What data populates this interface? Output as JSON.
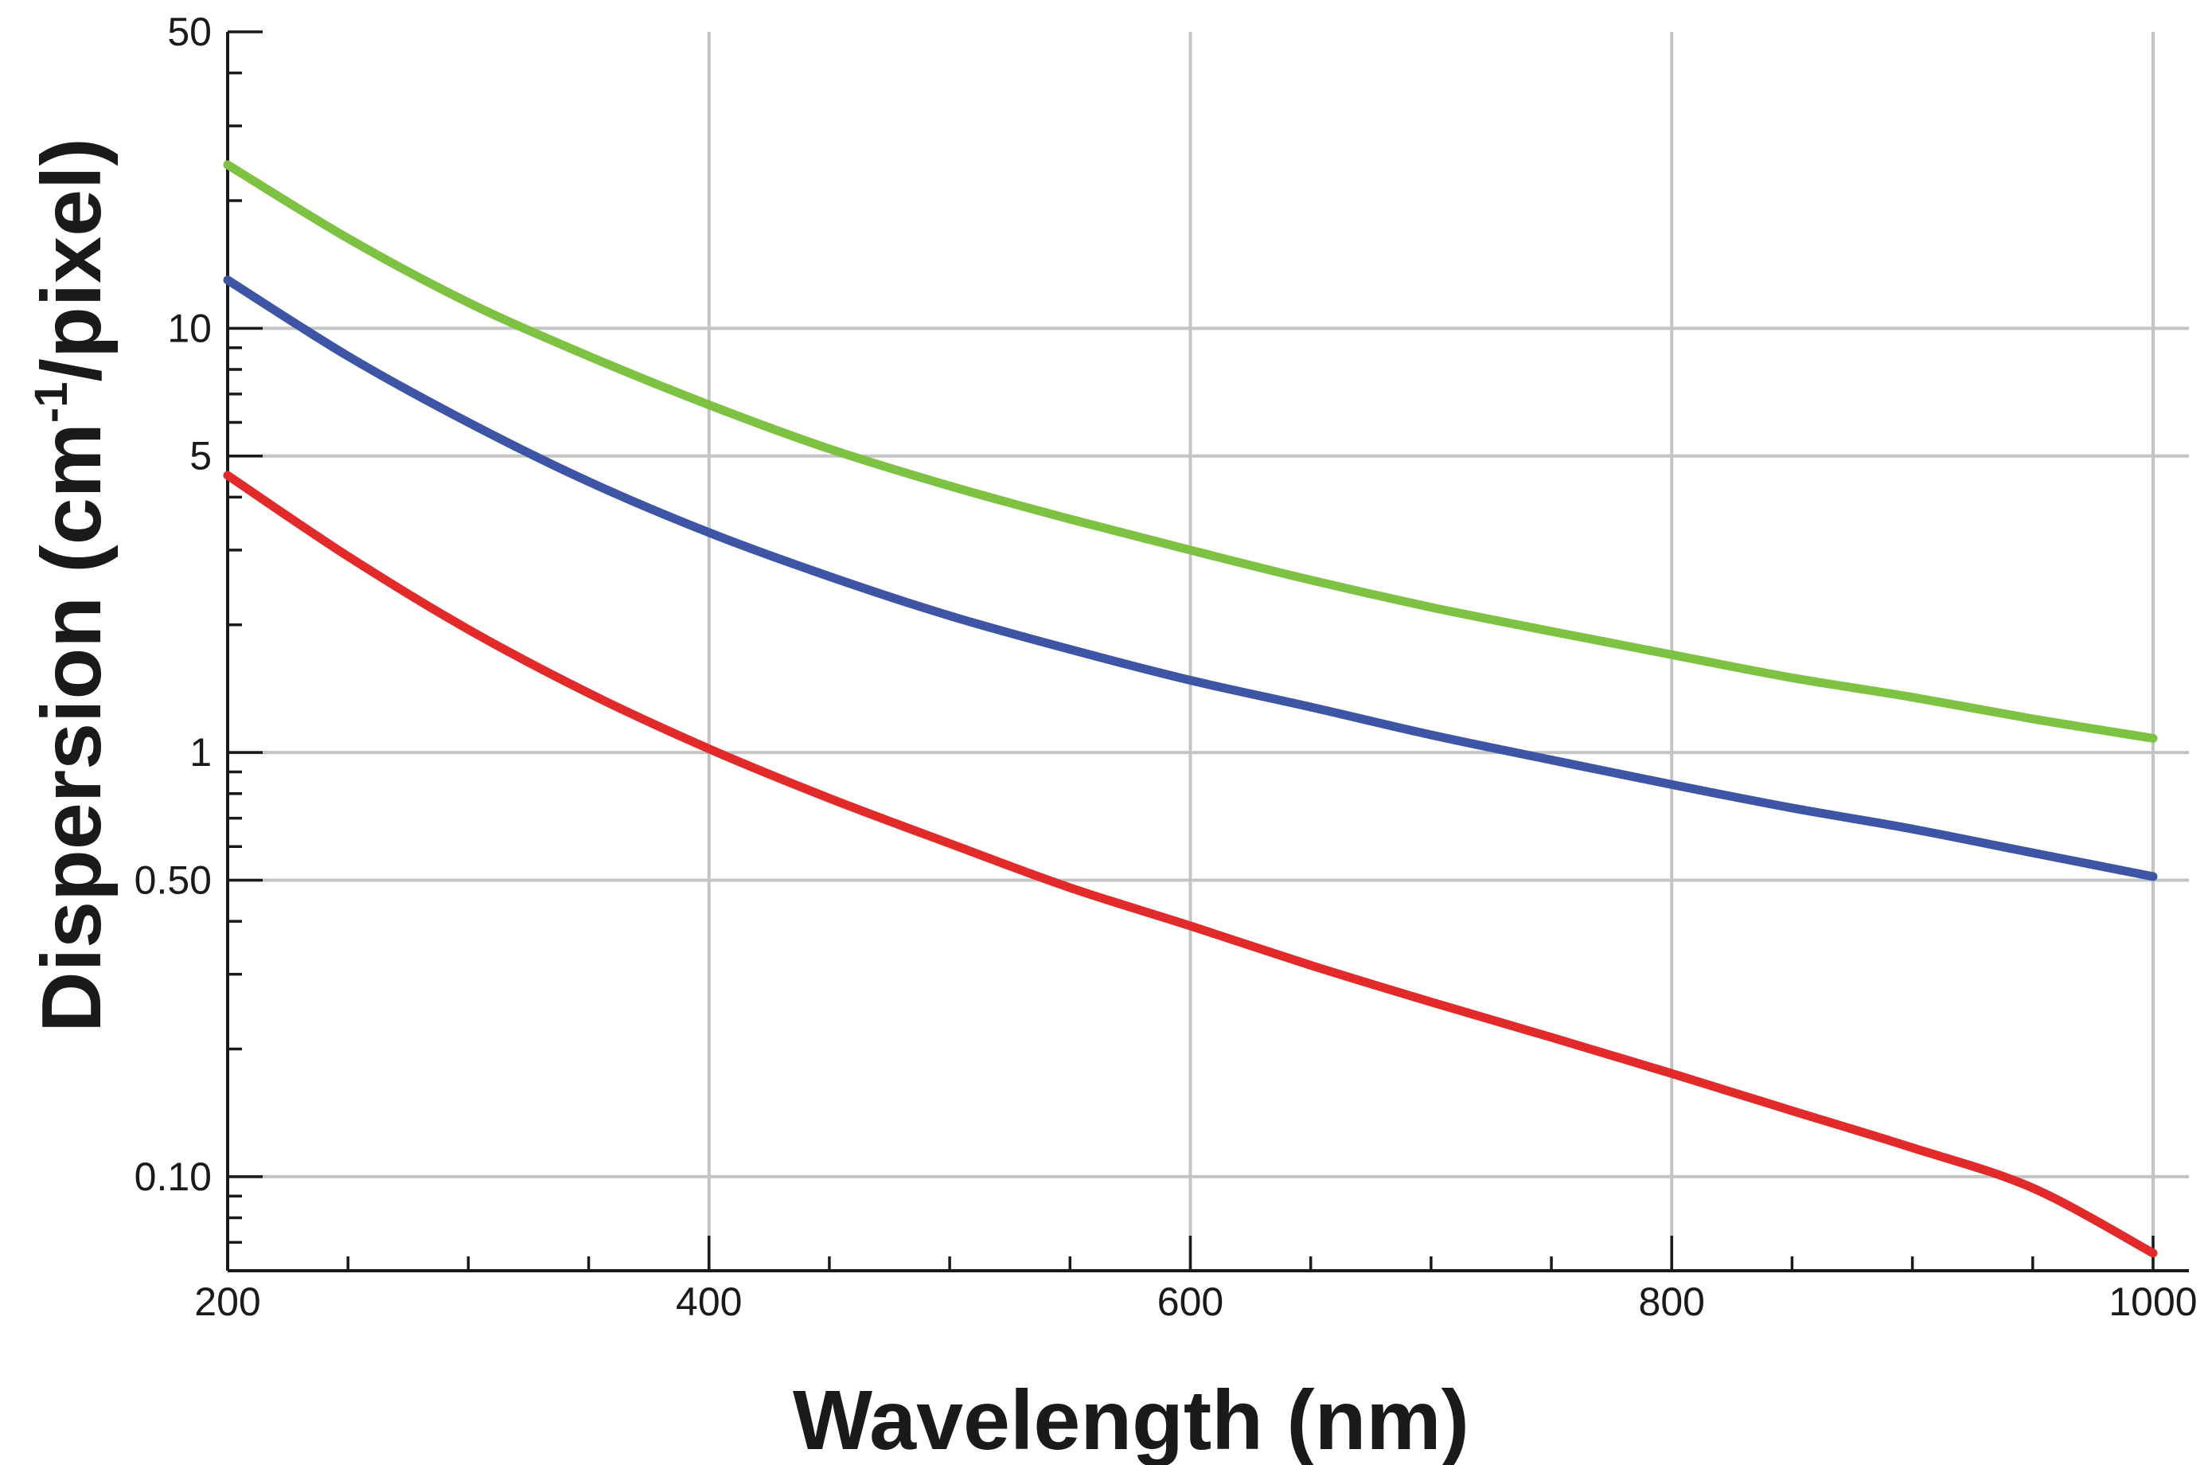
{
  "chart_data": {
    "type": "line",
    "title": "",
    "xlabel": "Wavelength (nm)",
    "ylabel": {
      "prefix": "Dispersion (cm",
      "superscript": "-1",
      "suffix": "/pixel)"
    },
    "xlim": [
      200,
      1000
    ],
    "ylim": [
      0.06,
      50
    ],
    "yscale": "log",
    "grid": true,
    "x_ticks": [
      {
        "value": 200,
        "label": "200"
      },
      {
        "value": 400,
        "label": "400"
      },
      {
        "value": 600,
        "label": "600"
      },
      {
        "value": 800,
        "label": "800"
      },
      {
        "value": 1000,
        "label": "1000"
      }
    ],
    "x_minor_step": 50,
    "y_ticks": [
      {
        "value": 0.1,
        "label": "0.10"
      },
      {
        "value": 0.5,
        "label": "0.50"
      },
      {
        "value": 1,
        "label": "1"
      },
      {
        "value": 5,
        "label": "5"
      },
      {
        "value": 10,
        "label": "10"
      },
      {
        "value": 50,
        "label": "50"
      }
    ],
    "y_minor_ticks": [
      0.07,
      0.08,
      0.09,
      0.2,
      0.3,
      0.4,
      0.6,
      0.7,
      0.8,
      0.9,
      2,
      3,
      4,
      6,
      7,
      8,
      9,
      20,
      30,
      40
    ],
    "x": [
      200,
      250,
      300,
      350,
      400,
      450,
      500,
      550,
      600,
      650,
      700,
      750,
      800,
      850,
      900,
      950,
      1000
    ],
    "series": [
      {
        "name": "green",
        "color": "#7dc242",
        "values": [
          24.3,
          16.3,
          11.5,
          8.6,
          6.6,
          5.2,
          4.25,
          3.55,
          3.0,
          2.55,
          2.2,
          1.93,
          1.7,
          1.5,
          1.35,
          1.2,
          1.08
        ]
      },
      {
        "name": "blue",
        "color": "#3d55a4",
        "values": [
          13.0,
          8.6,
          6.0,
          4.35,
          3.3,
          2.6,
          2.1,
          1.75,
          1.48,
          1.28,
          1.1,
          0.96,
          0.84,
          0.74,
          0.66,
          0.58,
          0.51
        ]
      },
      {
        "name": "red",
        "color": "#e32a2a",
        "values": [
          4.5,
          2.9,
          1.95,
          1.38,
          1.02,
          0.78,
          0.61,
          0.48,
          0.39,
          0.315,
          0.258,
          0.213,
          0.175,
          0.143,
          0.117,
          0.094,
          0.066
        ]
      }
    ]
  }
}
